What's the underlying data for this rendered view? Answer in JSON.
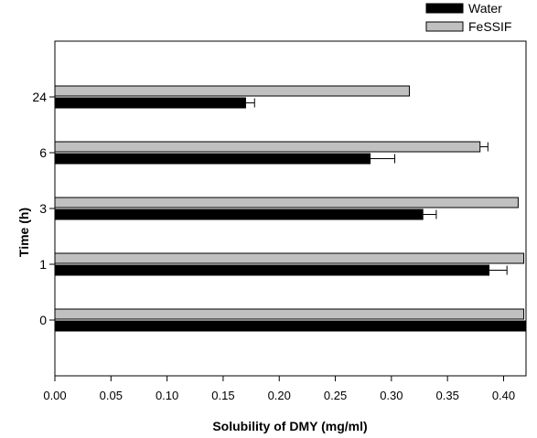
{
  "chart_data": {
    "type": "bar",
    "orientation": "horizontal",
    "categories": [
      "0",
      "1",
      "3",
      "6",
      "24"
    ],
    "series": [
      {
        "name": "Water",
        "color": "#000000",
        "values": [
          0.42,
          0.387,
          0.328,
          0.281,
          0.17
        ],
        "errors": [
          0.0,
          0.016,
          0.012,
          0.022,
          0.008
        ]
      },
      {
        "name": "FeSSIF",
        "color": "#c0c0c0",
        "values": [
          0.418,
          0.418,
          0.413,
          0.379,
          0.316
        ],
        "errors": [
          0.0,
          0.0,
          0.0,
          0.007,
          0.0
        ]
      }
    ],
    "xlabel": "Solubility of DMY (mg/ml)",
    "ylabel": "Time (h)",
    "xlim": [
      0.0,
      0.42
    ],
    "xticks": [
      "0.00",
      "0.05",
      "0.10",
      "0.15",
      "0.20",
      "0.25",
      "0.30",
      "0.35",
      "0.40"
    ],
    "xtick_values": [
      0,
      0.05,
      0.1,
      0.15,
      0.2,
      0.25,
      0.3,
      0.35,
      0.4
    ],
    "grid": false,
    "legend_position": "top-right"
  }
}
